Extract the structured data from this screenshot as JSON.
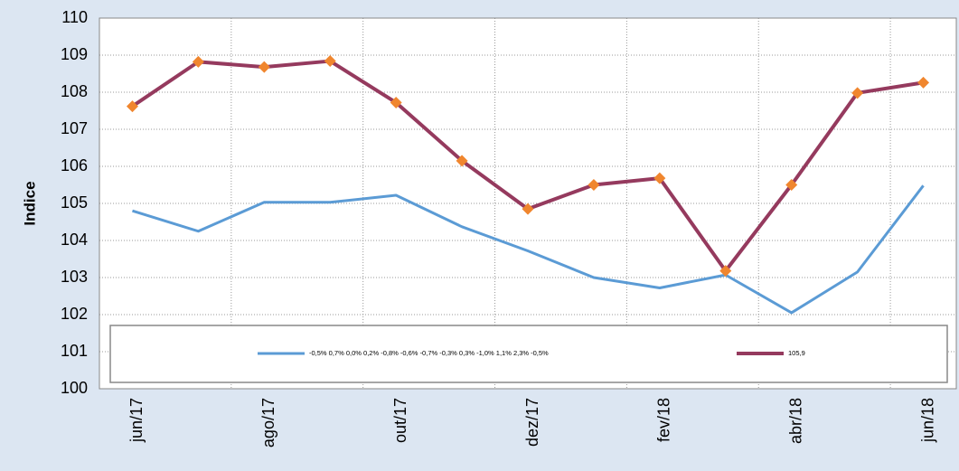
{
  "chart_data": {
    "type": "line",
    "y_label": "Indice",
    "categories": [
      "jun/17",
      null,
      "ago/17",
      null,
      "out/17",
      null,
      "dez/17",
      null,
      "fev/18",
      null,
      "abr/18",
      null,
      "jun/18"
    ],
    "series": [
      {
        "name": "-0,5% 0,7% 0,0% 0,2% -0,8% -0,6% -0,7% -0,3% 0,3% -1,0% 1,1% 2,3% -0,5%",
        "color": "#5b9bd5",
        "markers": false,
        "values": [
          104.8,
          104.25,
          105.03,
          105.03,
          105.22,
          104.37,
          103.72,
          103.0,
          102.72,
          103.07,
          102.05,
          103.15,
          105.48
        ]
      },
      {
        "name": "105,9",
        "color": "#953a5e",
        "markers": true,
        "marker_color": "#f0862e",
        "values": [
          107.62,
          108.82,
          108.68,
          108.84,
          107.72,
          106.15,
          104.85,
          105.5,
          105.68,
          103.18,
          105.5,
          107.98,
          108.26
        ]
      }
    ],
    "ylim": [
      100,
      110
    ],
    "yticks": [
      100,
      101,
      102,
      103,
      104,
      105,
      106,
      107,
      108,
      109,
      110
    ],
    "grid": true,
    "legend": "bottom"
  }
}
